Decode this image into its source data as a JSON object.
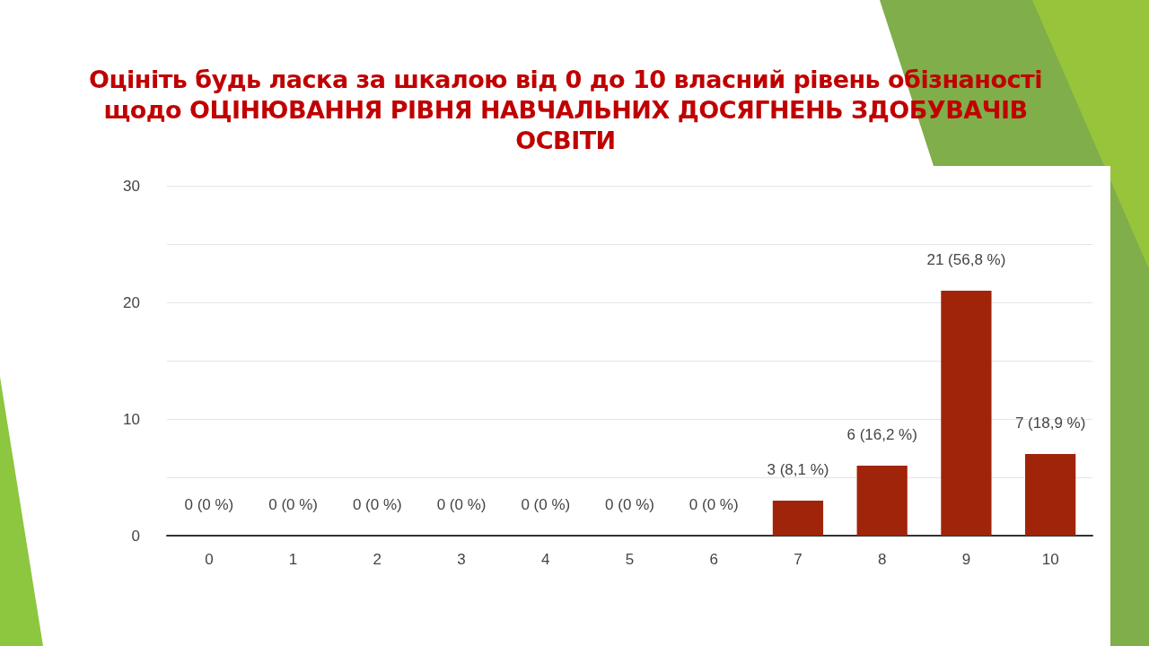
{
  "chart_data": {
    "type": "bar",
    "title": "Оцініть будь ласка за шкалою від 0 до 10 власний рівень обізнаності щодо ОЦІНЮВАННЯ РІВНЯ НАВЧАЛЬНИХ ДОСЯГНЕНЬ ЗДОБУВАЧІВ ОСВІТИ",
    "categories": [
      "0",
      "1",
      "2",
      "3",
      "4",
      "5",
      "6",
      "7",
      "8",
      "9",
      "10"
    ],
    "values": [
      0,
      0,
      0,
      0,
      0,
      0,
      0,
      3,
      6,
      21,
      7
    ],
    "value_labels": [
      "0 (0 %)",
      "0 (0 %)",
      "0 (0 %)",
      "0 (0 %)",
      "0 (0 %)",
      "0 (0 %)",
      "0 (0 %)",
      "3 (8,1 %)",
      "6 (16,2 %)",
      "21 (56,8 %)",
      "7 (18,9 %)"
    ],
    "color": "#a0240a",
    "ylim": [
      0,
      30
    ],
    "yticks": [
      0,
      {
        "value": 5,
        "label": null
      },
      10,
      {
        "value": 15,
        "label": null
      },
      20,
      {
        "value": 25,
        "label": null
      },
      30
    ],
    "grid": "y"
  }
}
